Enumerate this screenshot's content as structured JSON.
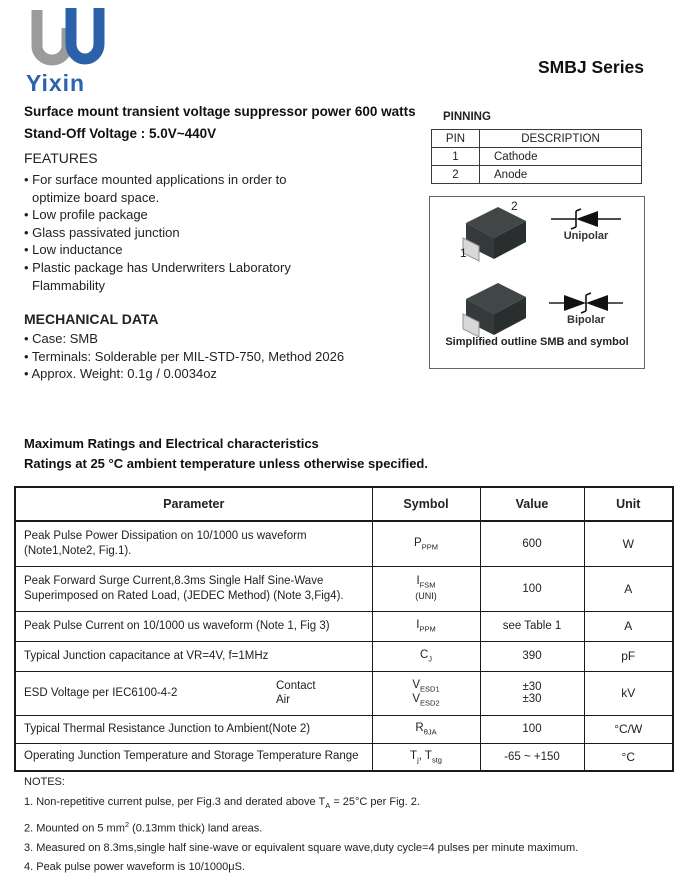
{
  "logo": {
    "text": "Yixin"
  },
  "header": {
    "series_title": "SMBJ Series"
  },
  "intro": {
    "line1": "Surface mount transient  voltage suppressor power 600 watts",
    "line2": "Stand-Off Voltage : 5.0V~440V"
  },
  "features": {
    "heading": "FEATURES",
    "items": [
      [
        "For surface mounted applications in order to",
        "optimize board space."
      ],
      [
        "Low profile package"
      ],
      [
        "Glass passivated junction"
      ],
      [
        "Low inductance"
      ],
      [
        "Plastic package has Underwriters Laboratory",
        " Flammability"
      ]
    ]
  },
  "mechanical": {
    "heading": "MECHANICAL DATA",
    "items": [
      "Case: SMB",
      "Terminals: Solderable per MIL-STD-750, Method 2026",
      "Approx. Weight: 0.1g / 0.0034oz"
    ]
  },
  "pinning": {
    "heading": "PINNING",
    "columns": [
      "PIN",
      "DESCRIPTION"
    ],
    "rows": [
      [
        "1",
        "Cathode"
      ],
      [
        "2",
        "Anode"
      ]
    ]
  },
  "outline": {
    "pin2_label": "2",
    "pin1_label": "1",
    "unipolar_label": "Unipolar",
    "bipolar_label": "Bipolar",
    "caption": "Simplified outline SMB and symbol",
    "body_color": "#3d4242",
    "terminal_color": "#d8d8d8"
  },
  "ratings": {
    "heading1": "Maximum Ratings and Electrical characteristics",
    "heading2": "Ratings at 25 °C ambient temperature unless otherwise specified.",
    "columns": [
      "Parameter",
      "Symbol",
      "Value",
      "Unit"
    ],
    "rows": [
      {
        "param_lines": [
          "Peak Pulse Power Dissipation on 10/1000 us waveform",
          "(Note1,Note2, Fig.1)."
        ],
        "symbol_lines": [
          [
            {
              "t": "P",
              "sub": "PPM"
            }
          ]
        ],
        "value_lines": [
          "600"
        ],
        "unit": "W"
      },
      {
        "param_lines": [
          "Peak Forward Surge Current,8.3ms Single Half Sine-Wave",
          "Superimposed on Rated Load, (JEDEC Method) (Note 3,Fig4)."
        ],
        "symbol_lines": [
          [
            {
              "t": "I",
              "sub": "FSM"
            }
          ],
          [
            {
              "t": "(UNI)",
              "small": true
            }
          ]
        ],
        "value_lines": [
          "100"
        ],
        "unit": "A"
      },
      {
        "param_lines": [
          "Peak Pulse Current on 10/1000 us waveform (Note 1, Fig 3)"
        ],
        "symbol_lines": [
          [
            {
              "t": "I",
              "sub": "PPM"
            }
          ]
        ],
        "value_lines": [
          "see Table 1"
        ],
        "unit": "A"
      },
      {
        "param_lines": [
          "Typical Junction capacitance at VR=4V, f=1MHz"
        ],
        "symbol_lines": [
          [
            {
              "t": "C",
              "sub": "J"
            }
          ]
        ],
        "value_lines": [
          "390"
        ],
        "unit": "pF"
      },
      {
        "param_lines": [
          "ESD Voltage per IEC6100-4-2"
        ],
        "param_side": [
          "Contact",
          "Air"
        ],
        "symbol_lines": [
          [
            {
              "t": "V",
              "sub": "ESD1"
            }
          ],
          [
            {
              "t": "V",
              "sub": "ESD2"
            }
          ]
        ],
        "value_lines": [
          "±30",
          "±30"
        ],
        "unit": "kV"
      },
      {
        "param_lines": [
          "Typical Thermal Resistance Junction to Ambient(Note 2)"
        ],
        "symbol_lines": [
          [
            {
              "t": "R",
              "sub": "θJA"
            }
          ]
        ],
        "value_lines": [
          "100"
        ],
        "unit": "°C/W"
      },
      {
        "param_lines": [
          "Operating Junction Temperature and Storage Temperature Range"
        ],
        "symbol_lines": [
          [
            {
              "t": "T",
              "sub": "j"
            },
            {
              "t": ", T",
              "sub": "stg"
            }
          ]
        ],
        "value_lines": [
          "-65 ~ +150"
        ],
        "unit": "°C"
      }
    ]
  },
  "notes": {
    "heading": "NOTES:",
    "items": [
      [
        {
          "t": "1. Non-repetitive current pulse, per Fig.3 and derated above T"
        },
        {
          "sub": "A"
        },
        {
          "t": " = 25°C  per Fig. 2."
        }
      ],
      [
        {
          "t": "2. Mounted on 5 mm"
        },
        {
          "sup": "2"
        },
        {
          "t": " (0.13mm  thick) land areas."
        }
      ],
      [
        {
          "t": "3. Measured on 8.3ms,single half sine-wave or equivalent square wave,duty cycle=4 pulses per minute maximum."
        }
      ],
      [
        {
          "t": "4. Peak pulse power waveform is 10/1000μS."
        }
      ]
    ]
  }
}
